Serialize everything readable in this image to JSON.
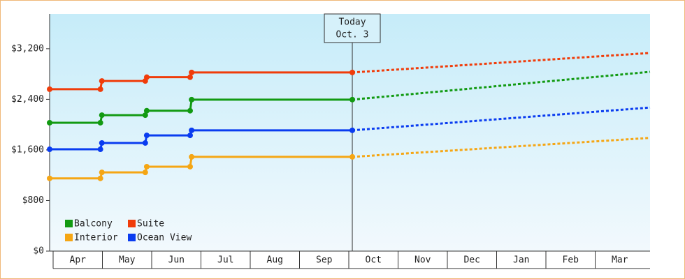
{
  "chart_data": {
    "type": "line",
    "categories": [
      "Apr",
      "May",
      "Jun",
      "Jul",
      "Aug",
      "Sep",
      "Oct",
      "Nov",
      "Dec",
      "Jan",
      "Feb",
      "Mar"
    ],
    "x": [
      -0.07,
      0.96,
      0.99,
      1.87,
      1.9,
      2.78,
      2.81,
      6.07,
      12.11
    ],
    "xlim": [
      -0.07,
      12.11
    ],
    "today_x": 6.07,
    "annotation": [
      "Today",
      "Oct. 3"
    ],
    "ylim": [
      0,
      3750
    ],
    "yticks": [
      {
        "value": 0,
        "label": "$0"
      },
      {
        "value": 800,
        "label": "$800"
      },
      {
        "value": 1600,
        "label": "$1,600"
      },
      {
        "value": 2400,
        "label": "$2,400"
      },
      {
        "value": 3200,
        "label": "$3,200"
      }
    ],
    "legend": "lower left",
    "series": [
      {
        "name": "Balcony",
        "color": "#129a12",
        "values": [
          2030,
          2030,
          2150,
          2150,
          2220,
          2220,
          2395,
          2395,
          2835
        ]
      },
      {
        "name": "Suite",
        "color": "#f03c0a",
        "values": [
          2560,
          2560,
          2690,
          2690,
          2750,
          2750,
          2825,
          2825,
          3133
        ]
      },
      {
        "name": "Interior",
        "color": "#f5a614",
        "values": [
          1150,
          1150,
          1245,
          1245,
          1335,
          1335,
          1490,
          1490,
          1790
        ]
      },
      {
        "name": "Ocean View",
        "color": "#0a3cf0",
        "values": [
          1610,
          1610,
          1710,
          1710,
          1830,
          1830,
          1910,
          1910,
          2270
        ]
      }
    ]
  }
}
